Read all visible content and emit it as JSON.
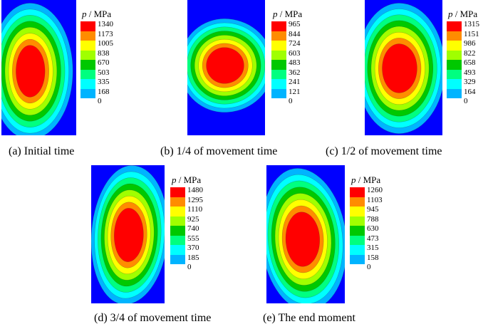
{
  "legend_unit_var": "p",
  "legend_unit": " / MPa",
  "colors": [
    "#0000ff",
    "#00b4ff",
    "#00ffff",
    "#00ff80",
    "#00c800",
    "#a0ff00",
    "#ffff00",
    "#ff8c00",
    "#ff0000"
  ],
  "panels": [
    {
      "id": "a",
      "caption": "(a) Initial time",
      "ticks": [
        "1340",
        "1173",
        "1005",
        "838",
        "670",
        "503",
        "335",
        "168",
        "0"
      ]
    },
    {
      "id": "b",
      "caption": "(b) 1/4 of movement time",
      "ticks": [
        "965",
        "844",
        "724",
        "603",
        "483",
        "362",
        "241",
        "121",
        "0"
      ]
    },
    {
      "id": "c",
      "caption": "(c) 1/2 of movement time",
      "ticks": [
        "1315",
        "1151",
        "986",
        "822",
        "658",
        "493",
        "329",
        "164",
        "0"
      ]
    },
    {
      "id": "d",
      "caption": "(d) 3/4 of movement time",
      "ticks": [
        "1480",
        "1295",
        "1110",
        "925",
        "740",
        "555",
        "370",
        "185",
        "0"
      ]
    },
    {
      "id": "e",
      "caption": "(e) The end moment",
      "ticks": [
        "1260",
        "1103",
        "945",
        "788",
        "630",
        "473",
        "315",
        "158",
        "0"
      ]
    }
  ]
}
